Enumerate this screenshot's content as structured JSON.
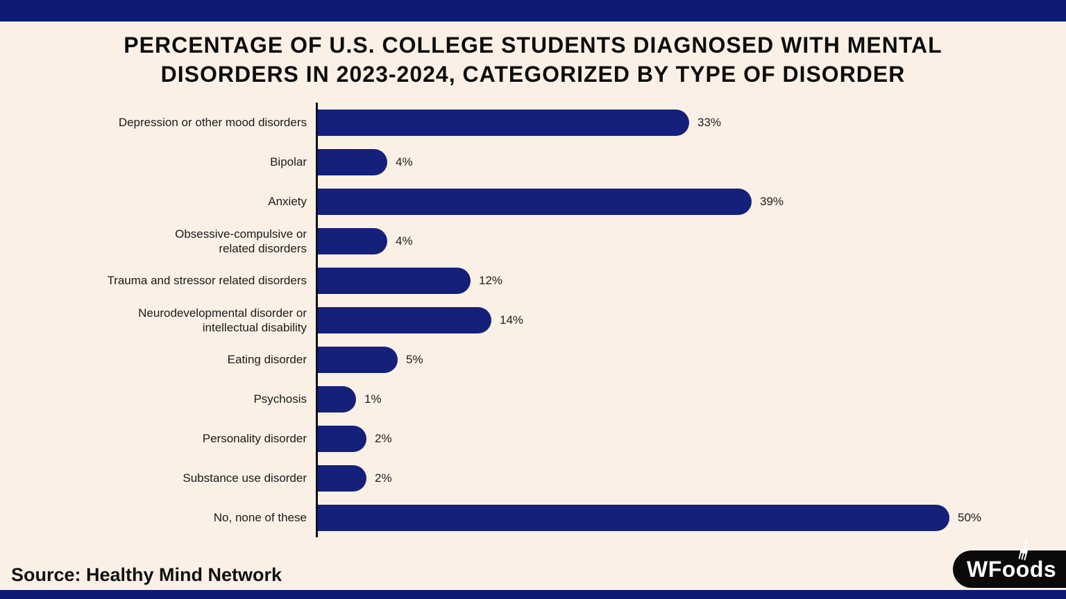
{
  "page": {
    "background_color": "#fbf0e6",
    "accent_navy": "#0d1973",
    "text_color": "#0d0d0d"
  },
  "title": {
    "line1": "PERCENTAGE OF U.S. COLLEGE STUDENTS DIAGNOSED WITH MENTAL",
    "line2": "DISORDERS IN 2023-2024, CATEGORIZED BY TYPE OF DISORDER"
  },
  "chart_data": {
    "type": "bar",
    "orientation": "horizontal",
    "title": "Percentage of U.S. college students diagnosed with mental disorders in 2023-2024, categorized by type of disorder",
    "categories": [
      "Depression or other mood disorders",
      "Bipolar",
      "Anxiety",
      "Obsessive-compulsive or\nrelated disorders",
      "Trauma and stressor related disorders",
      "Neurodevelopmental disorder or\nintellectual disability",
      "Eating disorder",
      "Psychosis",
      "Personality disorder",
      "Substance use disorder",
      "No, none of these"
    ],
    "values": [
      33,
      4,
      39,
      4,
      12,
      14,
      5,
      1,
      2,
      2,
      50
    ],
    "value_labels": [
      "33%",
      "4%",
      "39%",
      "4%",
      "12%",
      "14%",
      "5%",
      "1%",
      "2%",
      "2%",
      "50%"
    ],
    "unit": "%",
    "xlabel": "",
    "ylabel": "",
    "xlim": [
      0,
      55
    ],
    "grid": false,
    "legend": false,
    "bar_color": "#14207a",
    "axis_color": "#101010",
    "label_color": "#1a1a1a"
  },
  "source": {
    "label": "Source: Healthy Mind Network"
  },
  "logo": {
    "text": "WFoods",
    "icon": "fork-icon",
    "background_color": "#0a0a0a",
    "text_color": "#ffffff"
  }
}
